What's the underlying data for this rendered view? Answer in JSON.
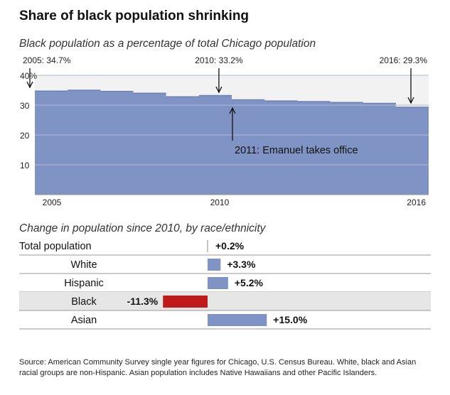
{
  "title": "Share of black population shrinking",
  "chart_data": [
    {
      "type": "area",
      "title": "Black population as a percentage of total Chicago population",
      "x": [
        2005,
        2006,
        2007,
        2008,
        2009,
        2010,
        2011,
        2012,
        2013,
        2014,
        2015,
        2016
      ],
      "values": [
        34.7,
        35.0,
        34.6,
        34.0,
        32.8,
        33.2,
        31.8,
        31.4,
        31.2,
        30.9,
        30.6,
        29.3
      ],
      "ylim": [
        0,
        40
      ],
      "yticks": [
        10,
        20,
        30,
        40
      ],
      "ytick_labels": [
        "10",
        "20",
        "30",
        "40%"
      ],
      "xtick_labels": [
        "2005",
        "2010",
        "2016"
      ],
      "xticks": [
        2005,
        2010,
        2016
      ],
      "annotations": [
        {
          "label": "2005: 34.7%",
          "x": 2005
        },
        {
          "label": "2010: 33.2%",
          "x": 2010
        },
        {
          "label": "2016: 29.3%",
          "x": 2016
        },
        {
          "label": "2011: Emanuel takes office",
          "x": 2011
        }
      ],
      "fill_color": "#7f93c4"
    },
    {
      "type": "bar",
      "title": "Change in population since 2010, by race/ethnicity",
      "categories": [
        "Total population",
        "White",
        "Hispanic",
        "Black",
        "Asian"
      ],
      "values": [
        0.2,
        3.3,
        5.2,
        -11.3,
        15.0
      ],
      "value_labels": [
        "+0.2%",
        "+3.3%",
        "+5.2%",
        "-11.3%",
        "+15.0%"
      ],
      "highlight": "Black",
      "positive_color": "#7f93c4",
      "negative_color": "#c0191a",
      "highlight_row_color": "#e6e6e6"
    }
  ],
  "source": "Source: American Community Survey single year figures for Chicago, U.S. Census Bureau. White, black and Asian racial groups are non-Hispanic. Asian population includes Native Hawaiians and other Pacific Islanders."
}
